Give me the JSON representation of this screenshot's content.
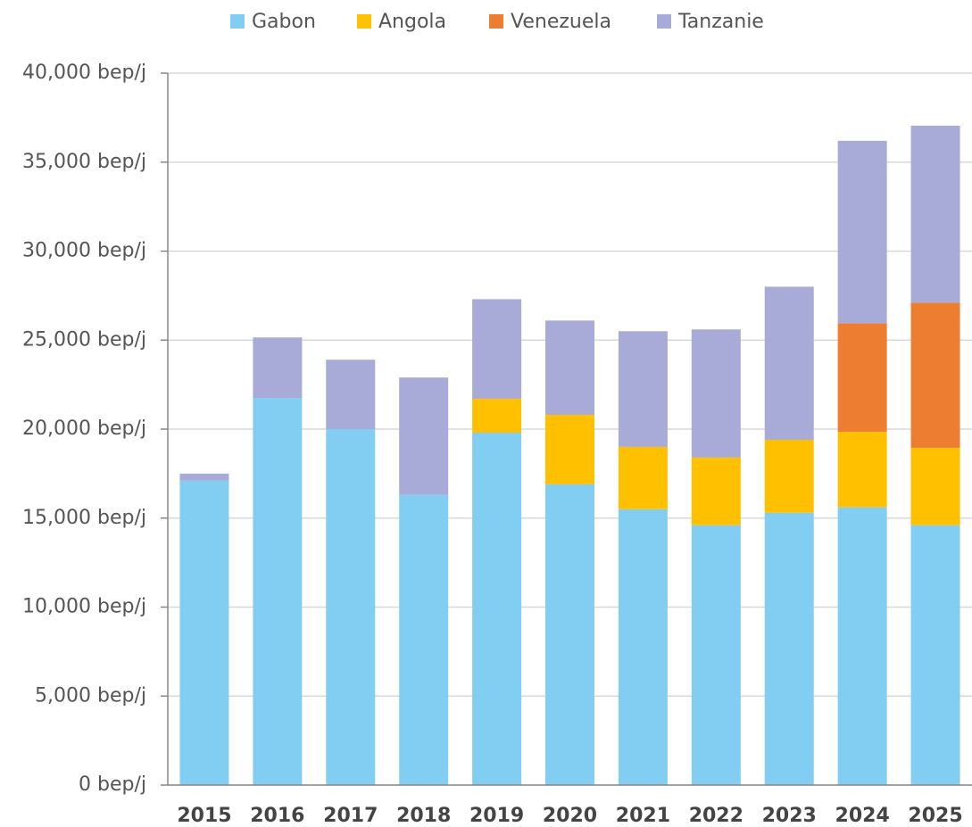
{
  "chart_data": {
    "type": "stacked_bar",
    "categories": [
      "2015",
      "2016",
      "2017",
      "2018",
      "2019",
      "2020",
      "2021",
      "2022",
      "2023",
      "2024",
      "2025"
    ],
    "series": [
      {
        "name": "Gabon",
        "color": "#82cdf2",
        "values": [
          17100,
          21750,
          20000,
          16300,
          19800,
          16900,
          15500,
          14600,
          15300,
          15600,
          14600
        ]
      },
      {
        "name": "Angola",
        "color": "#ffc000",
        "values": [
          null,
          null,
          null,
          null,
          1900,
          3900,
          3500,
          3800,
          4100,
          4250,
          4350
        ]
      },
      {
        "name": "Venezuela",
        "color": "#ed7d31",
        "values": [
          null,
          null,
          null,
          null,
          null,
          null,
          null,
          null,
          null,
          6100,
          8150
        ]
      },
      {
        "name": "Tanzanie",
        "color": "#a8abd8",
        "values": [
          400,
          3400,
          3900,
          6600,
          5600,
          5300,
          6500,
          7200,
          8600,
          10250,
          9950
        ]
      }
    ],
    "ylim": [
      0,
      40000
    ],
    "yticks": [
      {
        "value": 0,
        "label": "0 bep/j"
      },
      {
        "value": 5000,
        "label": "5,000 bep/j"
      },
      {
        "value": 10000,
        "label": "10,000 bep/j"
      },
      {
        "value": 15000,
        "label": "15,000 bep/j"
      },
      {
        "value": 20000,
        "label": "20,000 bep/j"
      },
      {
        "value": 25000,
        "label": "25,000 bep/j"
      },
      {
        "value": 30000,
        "label": "30,000 bep/j"
      },
      {
        "value": 35000,
        "label": "35,000 bep/j"
      },
      {
        "value": 40000,
        "label": "40,000 bep/j"
      }
    ],
    "grid": true,
    "legend": "top"
  }
}
